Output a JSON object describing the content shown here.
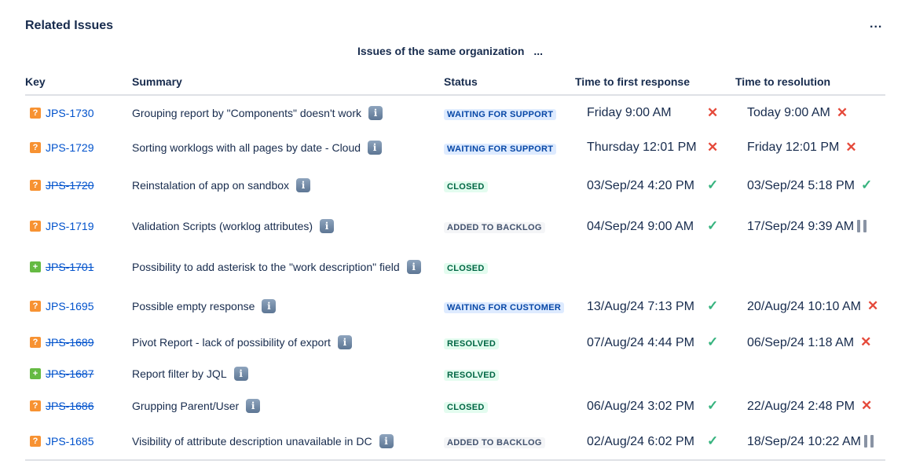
{
  "header": {
    "title": "Related Issues",
    "more_label": "...",
    "subtitle": "Issues of the same organization",
    "subtitle_more": "..."
  },
  "columns": [
    "Key",
    "Summary",
    "Status",
    "Time to first response",
    "Time to resolution"
  ],
  "colors": {
    "link": "#0052cc",
    "question_type": "#f79232",
    "feature_type": "#65ba43",
    "breached": "#e5493a",
    "met": "#36b37e"
  },
  "rows": [
    {
      "type": "question",
      "key": "JPS-1730",
      "resolved": false,
      "summary": "Grouping report by \"Components\" doesn't work",
      "status": "WAITING FOR SUPPORT",
      "status_color": "blue",
      "first_response": "Friday 9:00 AM",
      "first_icon": "cross",
      "resolution": "Today 9:00 AM",
      "resolution_icon": "cross"
    },
    {
      "type": "question",
      "key": "JPS-1729",
      "resolved": false,
      "summary": "Sorting worklogs with all pages by date - Cloud",
      "status": "WAITING FOR SUPPORT",
      "status_color": "blue",
      "first_response": "Thursday 12:01 PM",
      "first_icon": "cross",
      "resolution": "Friday 12:01 PM",
      "resolution_icon": "cross"
    },
    {
      "type": "question",
      "key": "JPS-1720",
      "resolved": true,
      "summary": "Reinstalation of app on sandbox",
      "status": "CLOSED",
      "status_color": "green",
      "first_response": "03/Sep/24 4:20 PM",
      "first_icon": "check",
      "resolution": "03/Sep/24 5:18 PM",
      "resolution_icon": "check"
    },
    {
      "type": "question",
      "key": "JPS-1719",
      "resolved": false,
      "summary": "Validation Scripts (worklog attributes)",
      "status": "ADDED TO BACKLOG",
      "status_color": "gray",
      "first_response": "04/Sep/24 9:00 AM",
      "first_icon": "check",
      "resolution": "17/Sep/24 9:39 AM",
      "resolution_icon": "pause"
    },
    {
      "type": "feature",
      "key": "JPS-1701",
      "resolved": true,
      "summary": "Possibility to add asterisk to the \"work description\" field",
      "status": "CLOSED",
      "status_color": "green",
      "first_response": "",
      "first_icon": "",
      "resolution": "",
      "resolution_icon": ""
    },
    {
      "type": "question",
      "key": "JPS-1695",
      "resolved": false,
      "summary": "Possible empty response",
      "status": "WAITING FOR CUSTOMER",
      "status_color": "blue",
      "first_response": "13/Aug/24 7:13 PM",
      "first_icon": "check",
      "resolution": "20/Aug/24 10:10 AM",
      "resolution_icon": "cross"
    },
    {
      "type": "question",
      "key": "JPS-1689",
      "resolved": true,
      "summary": "Pivot Report - lack of possibility of export",
      "status": "RESOLVED",
      "status_color": "green",
      "first_response": "07/Aug/24 4:44 PM",
      "first_icon": "check",
      "resolution": "06/Sep/24 1:18 AM",
      "resolution_icon": "cross"
    },
    {
      "type": "feature",
      "key": "JPS-1687",
      "resolved": true,
      "summary": "Report filter by JQL",
      "status": "RESOLVED",
      "status_color": "green",
      "first_response": "",
      "first_icon": "",
      "resolution": "",
      "resolution_icon": ""
    },
    {
      "type": "question",
      "key": "JPS-1686",
      "resolved": true,
      "summary": "Grupping Parent/User",
      "status": "CLOSED",
      "status_color": "green",
      "first_response": "06/Aug/24 3:02 PM",
      "first_icon": "check",
      "resolution": "22/Aug/24 2:48 PM",
      "resolution_icon": "cross"
    },
    {
      "type": "question",
      "key": "JPS-1685",
      "resolved": false,
      "summary": "Visibility of attribute description unavailable in DC",
      "status": "ADDED TO BACKLOG",
      "status_color": "gray",
      "first_response": "02/Aug/24 6:02 PM",
      "first_icon": "check",
      "resolution": "18/Sep/24 10:22 AM",
      "resolution_icon": "pause"
    }
  ]
}
